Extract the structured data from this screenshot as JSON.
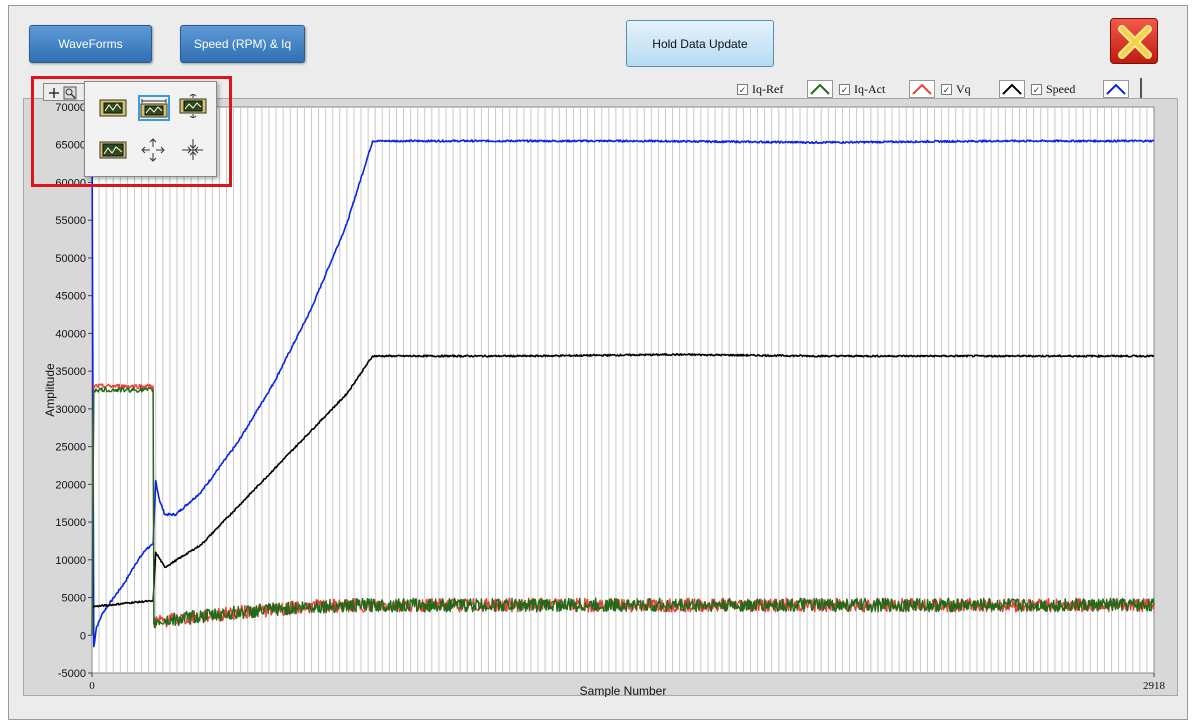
{
  "toolbar": {
    "waveforms_label": "WaveForms",
    "speed_iq_label": "Speed (RPM) & Iq",
    "hold_label": "Hold Data Update"
  },
  "legend": {
    "items": [
      {
        "label": "Iq-Ref",
        "checked": true,
        "color": "#1f6b1a"
      },
      {
        "label": "Iq-Act",
        "checked": true,
        "color": "#e5443a"
      },
      {
        "label": "Vq",
        "checked": true,
        "color": "#000000"
      },
      {
        "label": "Speed",
        "checked": true,
        "color": "#0a24e6"
      }
    ]
  },
  "chart_data": {
    "type": "line",
    "xlabel": "Sample Number",
    "ylabel": "Amplitude",
    "xlim": [
      0,
      2918
    ],
    "ylim": [
      -5000,
      70000
    ],
    "x_ticks": [
      "0",
      "2918"
    ],
    "y_ticks": [
      "-5000",
      "0",
      "5000",
      "10000",
      "15000",
      "20000",
      "25000",
      "30000",
      "35000",
      "40000",
      "45000",
      "50000",
      "55000",
      "60000",
      "65000",
      "70000"
    ],
    "grid": "vertical",
    "series": [
      {
        "name": "Speed",
        "color": "#0a24e6",
        "x": [
          0,
          5,
          12,
          30,
          60,
          90,
          120,
          150,
          168,
          175,
          185,
          200,
          230,
          300,
          400,
          500,
          600,
          700,
          771,
          800,
          1000,
          1500,
          2000,
          2500,
          2918
        ],
        "y": [
          68000,
          -1500,
          1000,
          3000,
          5000,
          7000,
          9500,
          11500,
          12000,
          20500,
          18000,
          16000,
          16000,
          19000,
          25500,
          33500,
          43000,
          54500,
          65500,
          65500,
          65500,
          65500,
          65300,
          65500,
          65500
        ]
      },
      {
        "name": "Vq",
        "color": "#000000",
        "x": [
          0,
          50,
          100,
          150,
          168,
          175,
          200,
          300,
          400,
          500,
          600,
          700,
          771,
          800,
          1200,
          1600,
          2000,
          2500,
          2918
        ],
        "y": [
          3800,
          4000,
          4300,
          4500,
          4500,
          11000,
          9000,
          12000,
          17000,
          22000,
          27000,
          32000,
          37000,
          37000,
          37000,
          37200,
          37000,
          37000,
          37000
        ]
      },
      {
        "name": "Iq-Act",
        "color": "#e5443a",
        "x": [
          0,
          5,
          168,
          170,
          175,
          300,
          400,
          600,
          771,
          1000,
          1500,
          2000,
          2500,
          2918
        ],
        "y": [
          0,
          33000,
          33000,
          1500,
          1800,
          2500,
          3000,
          3800,
          4000,
          4000,
          4000,
          4000,
          4000,
          4000
        ]
      },
      {
        "name": "Iq-Ref",
        "color": "#1f6b1a",
        "x": [
          0,
          5,
          168,
          170,
          175,
          300,
          400,
          600,
          771,
          1000,
          1500,
          2000,
          2500,
          2918
        ],
        "y": [
          0,
          32500,
          32500,
          1500,
          1800,
          2500,
          3000,
          3800,
          4000,
          4000,
          4000,
          4000,
          4000,
          4000
        ]
      }
    ]
  }
}
